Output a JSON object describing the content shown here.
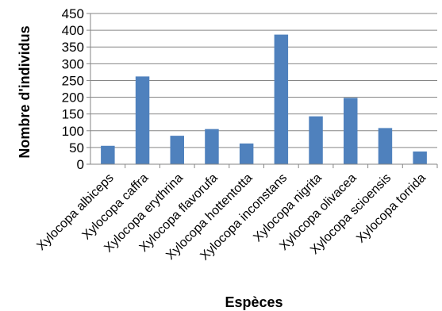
{
  "chart_data": {
    "type": "bar",
    "title": "",
    "xlabel": "Espèces",
    "ylabel": "Nombre d'individus",
    "ylim": [
      0,
      450
    ],
    "yticks": [
      "0",
      "50",
      "100",
      "150",
      "200",
      "250",
      "300",
      "350",
      "400",
      "450"
    ],
    "grid": true,
    "legend": "none",
    "bar_color": "#4F81BD",
    "categories": [
      "Xylocopa albiceps",
      "Xylocopa caffra",
      "Xylocopa erythrina",
      "Xylocopa flavorufa",
      "Xylocopa hottentotta",
      "Xylocopa inconstans",
      "Xylocopa nigrita",
      "Xylocopa olivacea",
      "Xylocopa scioensis",
      "Xylocopa torrida"
    ],
    "values": [
      55,
      262,
      85,
      105,
      62,
      387,
      143,
      198,
      108,
      38
    ]
  }
}
